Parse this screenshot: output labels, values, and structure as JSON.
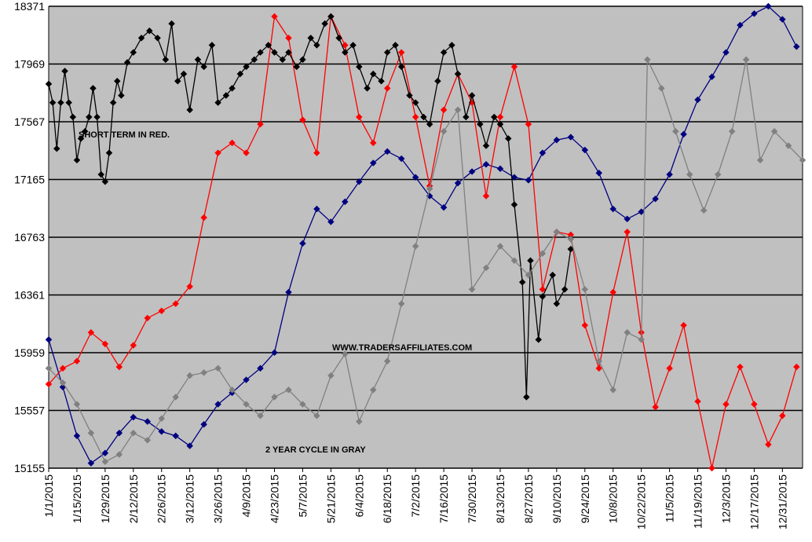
{
  "chart_data": {
    "type": "line",
    "title": "",
    "xlabel": "",
    "ylabel": "",
    "ylim": [
      15155,
      18371
    ],
    "xlim": [
      "1/1/2015",
      "1/10/2016"
    ],
    "y_ticks": [
      15155,
      15557,
      15959,
      16361,
      16763,
      17165,
      17567,
      17969,
      18371
    ],
    "x_ticks": [
      "1/1/2015",
      "1/15/2015",
      "1/29/2015",
      "2/12/2015",
      "2/26/2015",
      "3/12/2015",
      "3/26/2015",
      "4/9/2015",
      "4/23/2015",
      "5/7/2015",
      "5/21/2015",
      "6/4/2015",
      "6/18/2015",
      "7/2/2015",
      "7/16/2015",
      "7/30/2015",
      "8/13/2015",
      "8/27/2015",
      "9/10/2015",
      "9/24/2015",
      "10/8/2015",
      "10/22/2015",
      "11/5/2015",
      "11/19/2015",
      "12/3/2015",
      "12/17/2015",
      "12/31/2015"
    ],
    "grid": true,
    "legend": "none",
    "background_color": "#c0c0c0",
    "annotations": [
      "SHORT TERM IN RED.",
      "WWW.TRADERSAFFILIATES.COM",
      "2 YEAR CYCLE IN GRAY"
    ],
    "series": [
      {
        "color": "#000080",
        "points": [
          [
            "1/1/2015",
            16050
          ],
          [
            "1/8/2015",
            15720
          ],
          [
            "1/15/2015",
            15380
          ],
          [
            "1/22/2015",
            15190
          ],
          [
            "1/29/2015",
            15260
          ],
          [
            "2/5/2015",
            15400
          ],
          [
            "2/12/2015",
            15510
          ],
          [
            "2/19/2015",
            15480
          ],
          [
            "2/26/2015",
            15410
          ],
          [
            "3/5/2015",
            15380
          ],
          [
            "3/12/2015",
            15310
          ],
          [
            "3/19/2015",
            15460
          ],
          [
            "3/26/2015",
            15600
          ],
          [
            "4/2/2015",
            15680
          ],
          [
            "4/9/2015",
            15770
          ],
          [
            "4/16/2015",
            15850
          ],
          [
            "4/23/2015",
            15960
          ],
          [
            "4/30/2015",
            16380
          ],
          [
            "5/7/2015",
            16720
          ],
          [
            "5/14/2015",
            16960
          ],
          [
            "5/21/2015",
            16870
          ],
          [
            "5/28/2015",
            17010
          ],
          [
            "6/4/2015",
            17150
          ],
          [
            "6/11/2015",
            17280
          ],
          [
            "6/18/2015",
            17360
          ],
          [
            "6/25/2015",
            17310
          ],
          [
            "7/2/2015",
            17180
          ],
          [
            "7/9/2015",
            17050
          ],
          [
            "7/16/2015",
            16970
          ],
          [
            "7/23/2015",
            17140
          ],
          [
            "7/30/2015",
            17220
          ],
          [
            "8/6/2015",
            17270
          ],
          [
            "8/13/2015",
            17240
          ],
          [
            "8/20/2015",
            17180
          ],
          [
            "8/27/2015",
            17160
          ],
          [
            "9/3/2015",
            17350
          ],
          [
            "9/10/2015",
            17440
          ],
          [
            "9/17/2015",
            17460
          ],
          [
            "9/24/2015",
            17370
          ],
          [
            "10/1/2015",
            17210
          ],
          [
            "10/8/2015",
            16960
          ],
          [
            "10/15/2015",
            16890
          ],
          [
            "10/22/2015",
            16940
          ],
          [
            "10/29/2015",
            17030
          ],
          [
            "11/5/2015",
            17200
          ],
          [
            "11/12/2015",
            17480
          ],
          [
            "11/19/2015",
            17720
          ],
          [
            "11/26/2015",
            17880
          ],
          [
            "12/3/2015",
            18050
          ],
          [
            "12/10/2015",
            18240
          ],
          [
            "12/17/2015",
            18320
          ],
          [
            "12/24/2015",
            18371
          ],
          [
            "12/31/2015",
            18280
          ],
          [
            "1/7/2016",
            18090
          ]
        ]
      },
      {
        "color": "#ff0000",
        "points": [
          [
            "1/1/2015",
            15740
          ],
          [
            "1/8/2015",
            15850
          ],
          [
            "1/15/2015",
            15900
          ],
          [
            "1/22/2015",
            16100
          ],
          [
            "1/29/2015",
            16020
          ],
          [
            "2/5/2015",
            15860
          ],
          [
            "2/12/2015",
            16010
          ],
          [
            "2/19/2015",
            16200
          ],
          [
            "2/26/2015",
            16250
          ],
          [
            "3/5/2015",
            16300
          ],
          [
            "3/12/2015",
            16420
          ],
          [
            "3/19/2015",
            16900
          ],
          [
            "3/26/2015",
            17350
          ],
          [
            "4/2/2015",
            17420
          ],
          [
            "4/9/2015",
            17350
          ],
          [
            "4/16/2015",
            17550
          ],
          [
            "4/23/2015",
            18300
          ],
          [
            "4/30/2015",
            18150
          ],
          [
            "5/7/2015",
            17580
          ],
          [
            "5/14/2015",
            17350
          ],
          [
            "5/21/2015",
            18300
          ],
          [
            "5/28/2015",
            18100
          ],
          [
            "6/4/2015",
            17600
          ],
          [
            "6/11/2015",
            17420
          ],
          [
            "6/18/2015",
            17800
          ],
          [
            "6/25/2015",
            18050
          ],
          [
            "7/2/2015",
            17600
          ],
          [
            "7/9/2015",
            17120
          ],
          [
            "7/16/2015",
            17650
          ],
          [
            "7/23/2015",
            17900
          ],
          [
            "7/30/2015",
            17700
          ],
          [
            "8/6/2015",
            17050
          ],
          [
            "8/13/2015",
            17600
          ],
          [
            "8/20/2015",
            17950
          ],
          [
            "8/27/2015",
            17550
          ],
          [
            "9/3/2015",
            16400
          ],
          [
            "9/10/2015",
            16800
          ],
          [
            "9/17/2015",
            16780
          ],
          [
            "9/24/2015",
            16150
          ],
          [
            "10/1/2015",
            15850
          ],
          [
            "10/8/2015",
            16380
          ],
          [
            "10/15/2015",
            16800
          ],
          [
            "10/22/2015",
            16100
          ],
          [
            "10/29/2015",
            15580
          ],
          [
            "11/5/2015",
            15850
          ],
          [
            "11/12/2015",
            16150
          ],
          [
            "11/19/2015",
            15620
          ],
          [
            "11/26/2015",
            15155
          ],
          [
            "12/3/2015",
            15600
          ],
          [
            "12/10/2015",
            15860
          ],
          [
            "12/17/2015",
            15600
          ],
          [
            "12/24/2015",
            15320
          ],
          [
            "12/31/2015",
            15520
          ],
          [
            "1/7/2016",
            15860
          ]
        ]
      },
      {
        "color": "#000000",
        "points": [
          [
            "1/1/2015",
            17830
          ],
          [
            "1/3/2015",
            17700
          ],
          [
            "1/5/2015",
            17380
          ],
          [
            "1/7/2015",
            17700
          ],
          [
            "1/9/2015",
            17920
          ],
          [
            "1/11/2015",
            17700
          ],
          [
            "1/13/2015",
            17600
          ],
          [
            "1/15/2015",
            17300
          ],
          [
            "1/17/2015",
            17450
          ],
          [
            "1/19/2015",
            17500
          ],
          [
            "1/21/2015",
            17600
          ],
          [
            "1/23/2015",
            17800
          ],
          [
            "1/25/2015",
            17600
          ],
          [
            "1/27/2015",
            17200
          ],
          [
            "1/29/2015",
            17150
          ],
          [
            "1/31/2015",
            17350
          ],
          [
            "2/2/2015",
            17700
          ],
          [
            "2/4/2015",
            17850
          ],
          [
            "2/6/2015",
            17750
          ],
          [
            "2/9/2015",
            17980
          ],
          [
            "2/12/2015",
            18050
          ],
          [
            "2/16/2015",
            18150
          ],
          [
            "2/20/2015",
            18200
          ],
          [
            "2/24/2015",
            18150
          ],
          [
            "2/28/2015",
            18000
          ],
          [
            "3/3/2015",
            18250
          ],
          [
            "3/6/2015",
            17850
          ],
          [
            "3/9/2015",
            17900
          ],
          [
            "3/12/2015",
            17650
          ],
          [
            "3/16/2015",
            18000
          ],
          [
            "3/19/2015",
            17950
          ],
          [
            "3/23/2015",
            18100
          ],
          [
            "3/26/2015",
            17700
          ],
          [
            "3/30/2015",
            17750
          ],
          [
            "4/2/2015",
            17800
          ],
          [
            "4/6/2015",
            17900
          ],
          [
            "4/9/2015",
            17950
          ],
          [
            "4/13/2015",
            18000
          ],
          [
            "4/16/2015",
            18050
          ],
          [
            "4/20/2015",
            18100
          ],
          [
            "4/23/2015",
            18050
          ],
          [
            "4/27/2015",
            18000
          ],
          [
            "4/30/2015",
            18050
          ],
          [
            "5/4/2015",
            17950
          ],
          [
            "5/7/2015",
            18000
          ],
          [
            "5/11/2015",
            18150
          ],
          [
            "5/14/2015",
            18100
          ],
          [
            "5/18/2015",
            18250
          ],
          [
            "5/21/2015",
            18300
          ],
          [
            "5/25/2015",
            18150
          ],
          [
            "5/28/2015",
            18050
          ],
          [
            "6/1/2015",
            18100
          ],
          [
            "6/4/2015",
            17950
          ],
          [
            "6/8/2015",
            17800
          ],
          [
            "6/11/2015",
            17900
          ],
          [
            "6/15/2015",
            17850
          ],
          [
            "6/18/2015",
            18050
          ],
          [
            "6/22/2015",
            18100
          ],
          [
            "6/25/2015",
            17950
          ],
          [
            "6/29/2015",
            17750
          ],
          [
            "7/2/2015",
            17700
          ],
          [
            "7/6/2015",
            17600
          ],
          [
            "7/9/2015",
            17550
          ],
          [
            "7/13/2015",
            17850
          ],
          [
            "7/16/2015",
            18050
          ],
          [
            "7/20/2015",
            18100
          ],
          [
            "7/23/2015",
            17900
          ],
          [
            "7/27/2015",
            17600
          ],
          [
            "7/30/2015",
            17750
          ],
          [
            "8/3/2015",
            17550
          ],
          [
            "8/6/2015",
            17400
          ],
          [
            "8/10/2015",
            17600
          ],
          [
            "8/13/2015",
            17550
          ],
          [
            "8/17/2015",
            17450
          ],
          [
            "8/20/2015",
            16990
          ],
          [
            "8/24/2015",
            16450
          ],
          [
            "8/26/2015",
            15650
          ],
          [
            "8/28/2015",
            16600
          ],
          [
            "9/1/2015",
            16050
          ],
          [
            "9/3/2015",
            16350
          ],
          [
            "9/8/2015",
            16500
          ],
          [
            "9/10/2015",
            16300
          ],
          [
            "9/14/2015",
            16400
          ],
          [
            "9/17/2015",
            16680
          ]
        ]
      },
      {
        "color": "#808080",
        "points": [
          [
            "1/1/2015",
            15850
          ],
          [
            "1/8/2015",
            15750
          ],
          [
            "1/15/2015",
            15600
          ],
          [
            "1/22/2015",
            15400
          ],
          [
            "1/29/2015",
            15200
          ],
          [
            "2/5/2015",
            15250
          ],
          [
            "2/12/2015",
            15400
          ],
          [
            "2/19/2015",
            15350
          ],
          [
            "2/26/2015",
            15500
          ],
          [
            "3/5/2015",
            15650
          ],
          [
            "3/12/2015",
            15800
          ],
          [
            "3/19/2015",
            15820
          ],
          [
            "3/26/2015",
            15850
          ],
          [
            "4/2/2015",
            15700
          ],
          [
            "4/9/2015",
            15600
          ],
          [
            "4/16/2015",
            15520
          ],
          [
            "4/23/2015",
            15650
          ],
          [
            "4/30/2015",
            15700
          ],
          [
            "5/7/2015",
            15600
          ],
          [
            "5/14/2015",
            15520
          ],
          [
            "5/21/2015",
            15800
          ],
          [
            "5/28/2015",
            15950
          ],
          [
            "6/4/2015",
            15480
          ],
          [
            "6/11/2015",
            15700
          ],
          [
            "6/18/2015",
            15900
          ],
          [
            "6/25/2015",
            16300
          ],
          [
            "7/2/2015",
            16700
          ],
          [
            "7/9/2015",
            17100
          ],
          [
            "7/16/2015",
            17500
          ],
          [
            "7/23/2015",
            17650
          ],
          [
            "7/30/2015",
            16400
          ],
          [
            "8/6/2015",
            16550
          ],
          [
            "8/13/2015",
            16700
          ],
          [
            "8/20/2015",
            16600
          ],
          [
            "8/27/2015",
            16500
          ],
          [
            "9/3/2015",
            16650
          ],
          [
            "9/10/2015",
            16800
          ],
          [
            "9/17/2015",
            16750
          ],
          [
            "9/24/2015",
            16400
          ],
          [
            "10/1/2015",
            15900
          ],
          [
            "10/8/2015",
            15700
          ],
          [
            "10/15/2015",
            16100
          ],
          [
            "10/22/2015",
            16050
          ],
          [
            "10/25/2015",
            18000
          ],
          [
            "11/1/2015",
            17800
          ],
          [
            "11/8/2015",
            17500
          ],
          [
            "11/15/2015",
            17200
          ],
          [
            "11/22/2015",
            16950
          ],
          [
            "11/29/2015",
            17200
          ],
          [
            "12/6/2015",
            17500
          ],
          [
            "12/13/2015",
            18000
          ],
          [
            "12/20/2015",
            17300
          ],
          [
            "12/27/2015",
            17500
          ],
          [
            "1/3/2016",
            17400
          ],
          [
            "1/10/2016",
            17300
          ]
        ]
      }
    ]
  }
}
